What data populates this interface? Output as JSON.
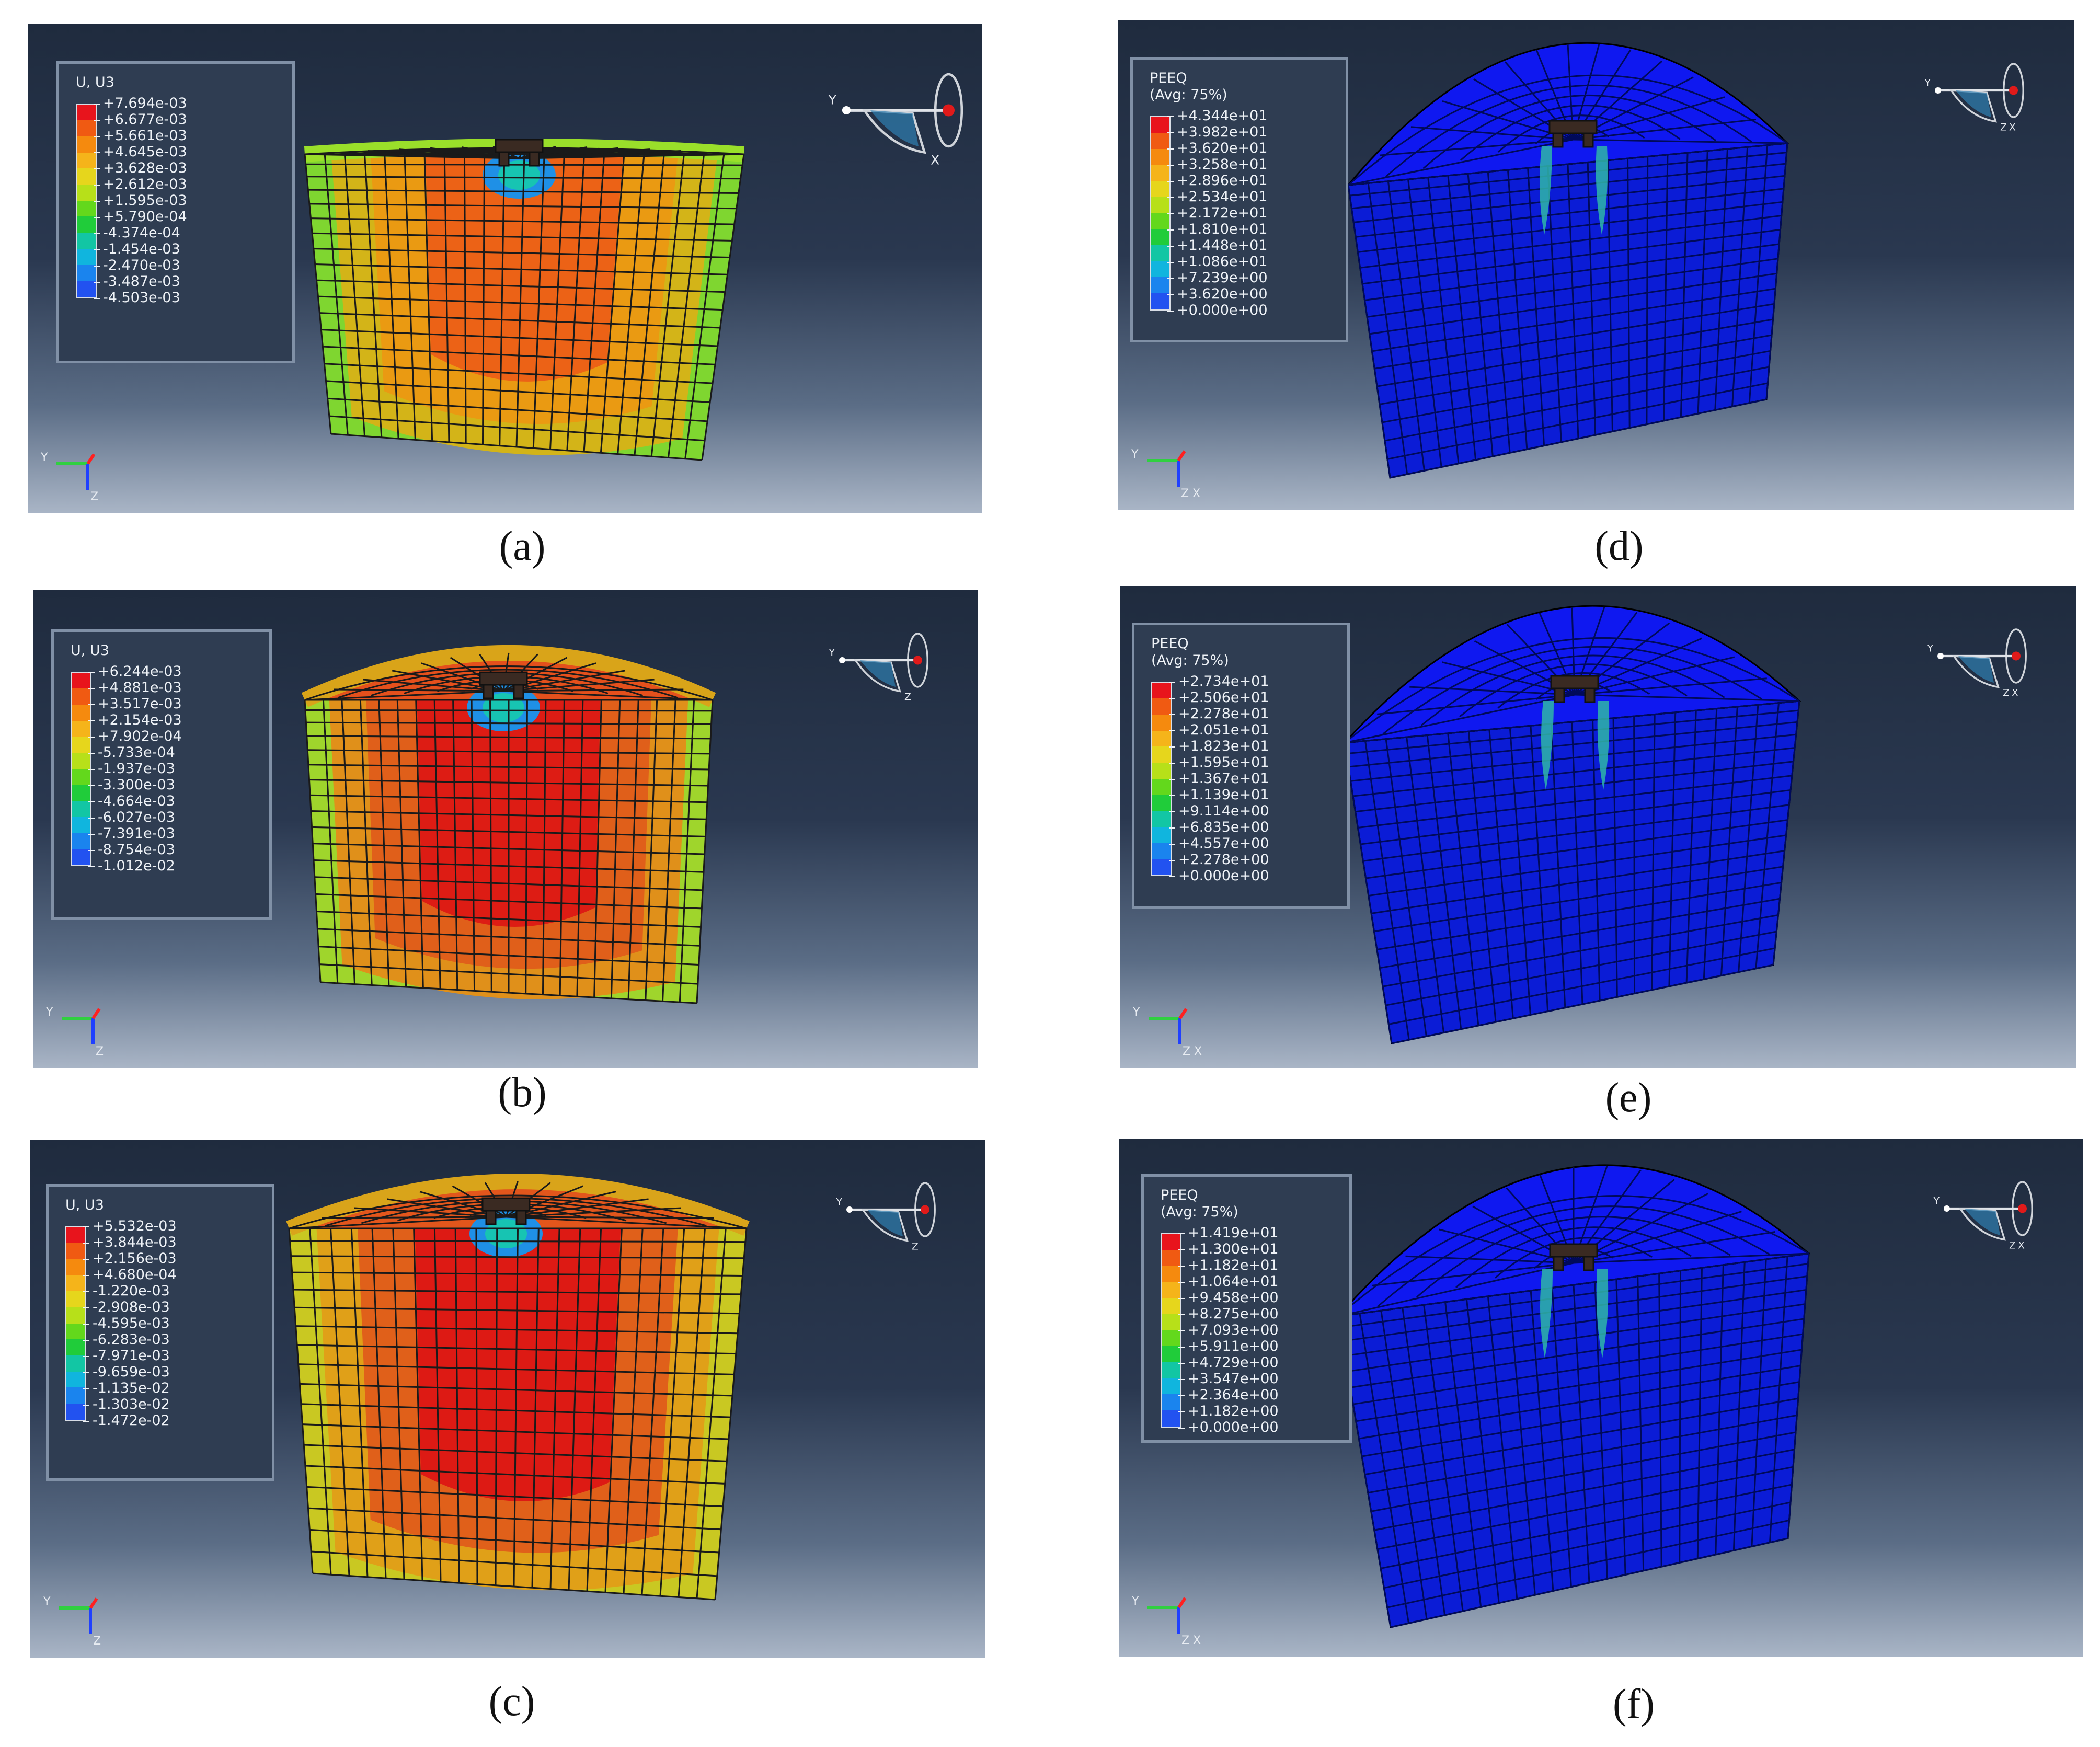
{
  "panels": [
    {
      "id": "a",
      "caption": "(a)",
      "kind": "displacement",
      "legend": {
        "title_lines": [
          "U, U3"
        ],
        "values": [
          "+7.694e-03",
          "+6.677e-03",
          "+5.661e-03",
          "+4.645e-03",
          "+3.628e-03",
          "+2.612e-03",
          "+1.595e-03",
          "+5.790e-04",
          "-4.374e-04",
          "-1.454e-03",
          "-2.470e-03",
          "-3.487e-03",
          "-4.503e-03"
        ]
      },
      "colors": {
        "top": "#e0a010",
        "rim": "#9adf2a",
        "band_outer": "#7fd630",
        "band_mid": "#d3b418",
        "band_inner": "#ea9a12",
        "core": "#ec6216",
        "hole": "#1f90e6"
      },
      "triad_labels": [
        "Y",
        "X"
      ],
      "small_triad_labels": [
        "Y",
        "Z"
      ]
    },
    {
      "id": "b",
      "caption": "(b)",
      "kind": "displacement",
      "legend": {
        "title_lines": [
          "U, U3"
        ],
        "values": [
          "+6.244e-03",
          "+4.881e-03",
          "+3.517e-03",
          "+2.154e-03",
          "+7.902e-04",
          "-5.733e-04",
          "-1.937e-03",
          "-3.300e-03",
          "-4.664e-03",
          "-6.027e-03",
          "-7.391e-03",
          "-8.754e-03",
          "-1.012e-02"
        ]
      },
      "colors": {
        "top": "#e4501c",
        "rim": "#d9a419",
        "band_outer": "#9fd52c",
        "band_mid": "#e0901a",
        "band_inner": "#e05f1a",
        "core": "#dd1c14",
        "hole": "#1f90e6"
      },
      "triad_labels": [
        "Y",
        "Z"
      ],
      "small_triad_labels": [
        "Y",
        "Z"
      ]
    },
    {
      "id": "c",
      "caption": "(c)",
      "kind": "displacement",
      "legend": {
        "title_lines": [
          "U, U3"
        ],
        "values": [
          "+5.532e-03",
          "+3.844e-03",
          "+2.156e-03",
          "+4.680e-04",
          "-1.220e-03",
          "-2.908e-03",
          "-4.595e-03",
          "-6.283e-03",
          "-7.971e-03",
          "-9.659e-03",
          "-1.135e-02",
          "-1.303e-02",
          "-1.472e-02"
        ]
      },
      "colors": {
        "top": "#e2561c",
        "rim": "#d9a41a",
        "band_outer": "#c9c822",
        "band_mid": "#e0a018",
        "band_inner": "#e0601a",
        "core": "#dd1a14",
        "hole": "#1f90e6"
      },
      "triad_labels": [
        "Y",
        "Z"
      ],
      "small_triad_labels": [
        "Y",
        "Z"
      ]
    },
    {
      "id": "d",
      "caption": "(d)",
      "kind": "peeq",
      "legend": {
        "title_lines": [
          "PEEQ",
          "(Avg: 75%)"
        ],
        "values": [
          "+4.344e+01",
          "+3.982e+01",
          "+3.620e+01",
          "+3.258e+01",
          "+2.896e+01",
          "+2.534e+01",
          "+2.172e+01",
          "+1.810e+01",
          "+1.448e+01",
          "+1.086e+01",
          "+7.239e+00",
          "+3.620e+00",
          "+0.000e+00"
        ]
      },
      "colors": {
        "top": "#0f18f0",
        "side": "#0b1cd6",
        "pile": "#2fb6a8"
      },
      "triad_labels": [
        "Y",
        "Z",
        "X"
      ],
      "small_triad_labels": [
        "Y",
        "Z",
        "X"
      ]
    },
    {
      "id": "e",
      "caption": "(e)",
      "kind": "peeq",
      "legend": {
        "title_lines": [
          "PEEQ",
          "(Avg: 75%)"
        ],
        "values": [
          "+2.734e+01",
          "+2.506e+01",
          "+2.278e+01",
          "+2.051e+01",
          "+1.823e+01",
          "+1.595e+01",
          "+1.367e+01",
          "+1.139e+01",
          "+9.114e+00",
          "+6.835e+00",
          "+4.557e+00",
          "+2.278e+00",
          "+0.000e+00"
        ]
      },
      "colors": {
        "top": "#0f18f0",
        "side": "#0b1cd6",
        "pile": "#2fb6a8"
      },
      "triad_labels": [
        "Y",
        "Z",
        "X"
      ],
      "small_triad_labels": [
        "Y",
        "Z",
        "X"
      ]
    },
    {
      "id": "f",
      "caption": "(f)",
      "kind": "peeq",
      "legend": {
        "title_lines": [
          "PEEQ",
          "(Avg: 75%)"
        ],
        "values": [
          "+1.419e+01",
          "+1.300e+01",
          "+1.182e+01",
          "+1.064e+01",
          "+9.458e+00",
          "+8.275e+00",
          "+7.093e+00",
          "+5.911e+00",
          "+4.729e+00",
          "+3.547e+00",
          "+2.364e+00",
          "+1.182e+00",
          "+0.000e+00"
        ]
      },
      "colors": {
        "top": "#0f18f0",
        "side": "#0b1cd6",
        "pile": "#2fb6a8"
      },
      "triad_labels": [
        "Y",
        "Z",
        "X"
      ],
      "small_triad_labels": [
        "Y",
        "Z",
        "X"
      ]
    }
  ],
  "legend_swatch_colors": [
    "#e8141c",
    "#f05a12",
    "#f58a0e",
    "#f5b41a",
    "#e6d61c",
    "#b7e019",
    "#63d81c",
    "#20cc3a",
    "#12c6a4",
    "#10b5de",
    "#1a84ee",
    "#2252f0",
    "#2a20e8"
  ]
}
